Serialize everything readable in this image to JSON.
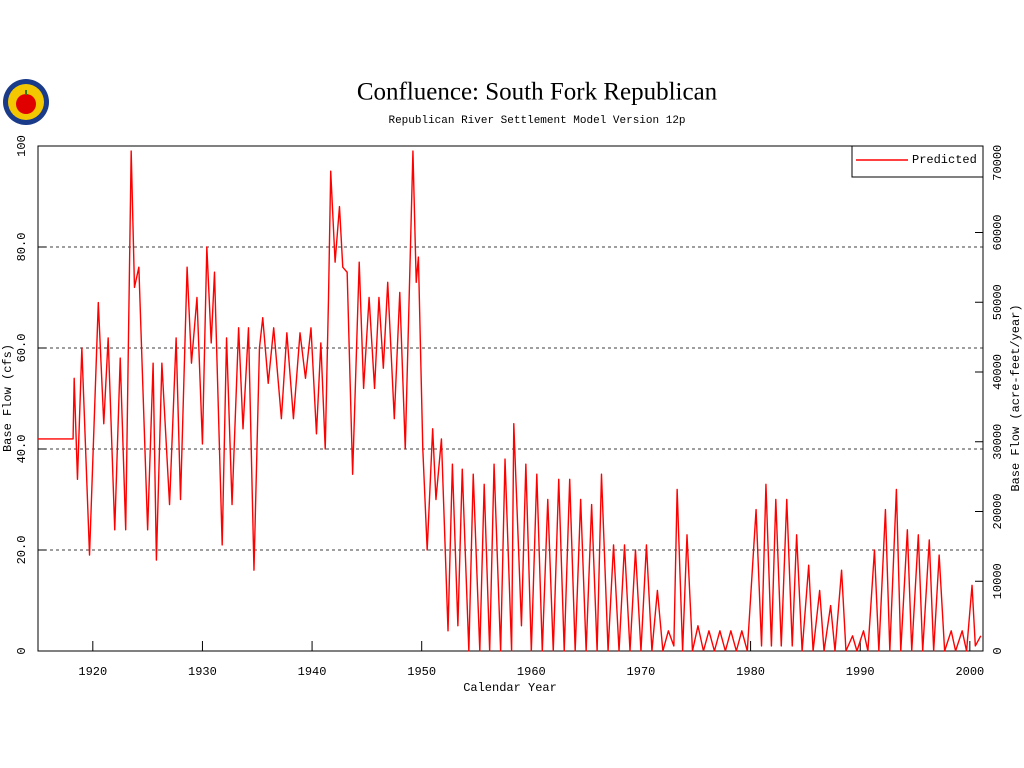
{
  "chart_data": {
    "type": "line",
    "title": "Confluence: South Fork Republican",
    "subtitle": "Republican River Settlement Model Version 12p",
    "xlabel": "Calendar Year",
    "ylabel": "Base Flow (cfs)",
    "y2label": "Base Flow (acre-feet/year)",
    "xlim": [
      1915,
      2001.2
    ],
    "xticks": [
      1920,
      1930,
      1940,
      1950,
      1960,
      1970,
      1980,
      1990,
      2000
    ],
    "ylim": [
      0,
      100
    ],
    "yticks": [
      0,
      {
        "value": 20,
        "label": "20.0"
      },
      {
        "value": 40,
        "label": "40.0"
      },
      {
        "value": 60,
        "label": "60.0"
      },
      {
        "value": 80,
        "label": "80.0"
      },
      100
    ],
    "y2lim": [
      0,
      72400
    ],
    "y2ticks": [
      0,
      10000,
      20000,
      30000,
      40000,
      50000,
      60000,
      70000
    ],
    "grid": true,
    "legend": "top-right",
    "x": [
      1915,
      1918.2,
      1918.3,
      1918.6,
      1919,
      1919.7,
      1920.5,
      1921,
      1921.4,
      1922,
      1922.5,
      1923,
      1923.5,
      1923.8,
      1924.2,
      1925,
      1925.5,
      1925.8,
      1926.3,
      1927,
      1927.6,
      1928,
      1928.6,
      1929,
      1929.5,
      1930,
      1930.4,
      1930.8,
      1931.1,
      1931.8,
      1932.2,
      1932.7,
      1933.3,
      1933.7,
      1934.2,
      1934.7,
      1935.2,
      1935.5,
      1936,
      1936.5,
      1937.2,
      1937.7,
      1938.3,
      1938.9,
      1939.4,
      1939.9,
      1940.4,
      1940.8,
      1941.2,
      1941.5,
      1941.7,
      1942.1,
      1942.5,
      1942.8,
      1943.2,
      1943.7,
      1944.3,
      1944.7,
      1945.2,
      1945.7,
      1946.1,
      1946.5,
      1946.9,
      1947.5,
      1948,
      1948.5,
      1949.2,
      1949.5,
      1949.7,
      1950.1,
      1950.5,
      1951,
      1951.3,
      1951.8,
      1952.4,
      1952.8,
      1953.3,
      1953.7,
      1954.3,
      1954.7,
      1955.3,
      1955.7,
      1956.2,
      1956.6,
      1957.2,
      1957.6,
      1958.2,
      1958.4,
      1959.1,
      1959.5,
      1960,
      1960.5,
      1961,
      1961.5,
      1962,
      1962.5,
      1963,
      1963.5,
      1964,
      1964.5,
      1965,
      1965.5,
      1966,
      1966.4,
      1967,
      1967.5,
      1968,
      1968.5,
      1969,
      1969.5,
      1970,
      1970.5,
      1971,
      1971.5,
      1972,
      1972.5,
      1973,
      1973.3,
      1973.8,
      1974.2,
      1974.7,
      1975.2,
      1975.7,
      1976.2,
      1976.7,
      1977.2,
      1977.7,
      1978.2,
      1978.7,
      1979.2,
      1979.7,
      1980.5,
      1981,
      1981.4,
      1981.9,
      1982.3,
      1982.8,
      1983.3,
      1983.8,
      1984.2,
      1984.7,
      1985.3,
      1985.7,
      1986.3,
      1986.7,
      1987.3,
      1987.7,
      1988.3,
      1988.7,
      1989.3,
      1989.7,
      1990.3,
      1990.7,
      1991.3,
      1991.7,
      1992.3,
      1992.7,
      1993.3,
      1993.7,
      1994.3,
      1994.7,
      1995.3,
      1995.7,
      1996.3,
      1996.7,
      1997.2,
      1997.7,
      1998.3,
      1998.7,
      1999.3,
      1999.7,
      2000.2,
      2000.5,
      2001
    ],
    "series": [
      {
        "name": "Predicted",
        "color": "#ff0000",
        "values": [
          42,
          42,
          54,
          34,
          60,
          19,
          69,
          45,
          62,
          24,
          58,
          24,
          99,
          72,
          76,
          24,
          57,
          18,
          57,
          29,
          62,
          30,
          76,
          57,
          70,
          41,
          80,
          61,
          75,
          21,
          62,
          29,
          64,
          44,
          64,
          16,
          60,
          66,
          53,
          64,
          46,
          63,
          46,
          63,
          54,
          64,
          43,
          61,
          40,
          70,
          95,
          77,
          88,
          76,
          75,
          35,
          77,
          52,
          70,
          52,
          70,
          56,
          73,
          46,
          71,
          40,
          99,
          73,
          78,
          40,
          20,
          44,
          30,
          42,
          4,
          37,
          5,
          36,
          0,
          35,
          0,
          33,
          0,
          37,
          0,
          38,
          0,
          45,
          5,
          37,
          0,
          35,
          0,
          30,
          0,
          34,
          0,
          34,
          0,
          30,
          0,
          29,
          0,
          35,
          0,
          21,
          0,
          21,
          0,
          20,
          0,
          21,
          0,
          12,
          0,
          4,
          1,
          32,
          0,
          23,
          0,
          5,
          0,
          4,
          0,
          4,
          0,
          4,
          0,
          4,
          0,
          28,
          1,
          33,
          1,
          30,
          1,
          30,
          1,
          23,
          0,
          17,
          0,
          12,
          0,
          9,
          0,
          16,
          0,
          3,
          0,
          4,
          0,
          20,
          0,
          28,
          0,
          32,
          0,
          24,
          0,
          23,
          0,
          22,
          0,
          19,
          0,
          4,
          0,
          4,
          0,
          13,
          1,
          3
        ]
      }
    ]
  }
}
